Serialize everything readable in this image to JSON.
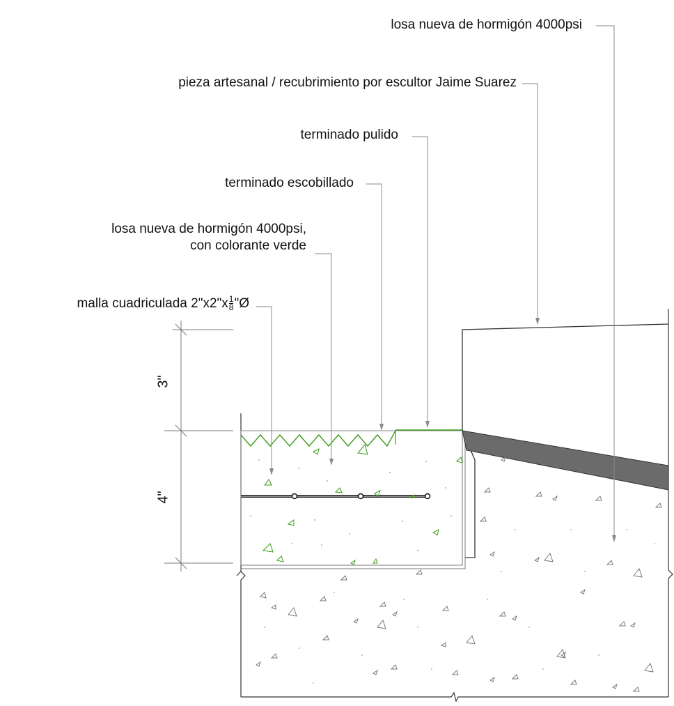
{
  "colors": {
    "line": "#444444",
    "leader": "#8a8a8a",
    "accent_green": "#3c9a16",
    "slab_shade": "#6b6b6b",
    "mesh": "#111111"
  },
  "callouts": {
    "losa_nueva_top": "losa nueva de hormigón 4000psi",
    "pieza_artesanal": "pieza artesanal / recubrimiento por escultor Jaime Suarez",
    "terminado_pulido": "terminado pulido",
    "terminado_escobillado": "terminado escobillado",
    "losa_verde_line1": "losa nueva de hormigón 4000psi,",
    "losa_verde_line2": "con colorante verde",
    "malla_prefix": "malla cuadriculada 2\"x2\"x",
    "malla_frac_num": "1",
    "malla_frac_den": "8",
    "malla_suffix": "\"Ø"
  },
  "dimensions": {
    "upper": "3\"",
    "lower": "4\""
  }
}
